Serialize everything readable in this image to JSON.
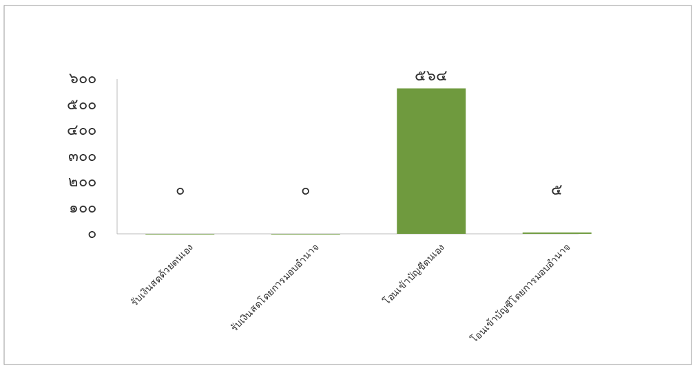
{
  "chart_data": {
    "type": "bar",
    "categories": [
      "รับเงินสดด้วยตนเอง",
      "รับเงินสดโดยการมอบอำนาจ",
      "โอนเข้าบัญชีตนเอง",
      "โอนเข้าบัญชีโดยการมอบอำนาจ"
    ],
    "values": [
      0,
      0,
      564,
      5
    ],
    "value_labels": [
      "๐",
      "๐",
      "๕๖๔",
      "๕"
    ],
    "color": "#6f9a3e",
    "ylim": [
      0,
      600
    ],
    "yticks": [
      {
        "value": 0,
        "label": "๐"
      },
      {
        "value": 100,
        "label": "๑๐๐"
      },
      {
        "value": 200,
        "label": "๒๐๐"
      },
      {
        "value": 300,
        "label": "๓๐๐"
      },
      {
        "value": 400,
        "label": "๔๐๐"
      },
      {
        "value": 500,
        "label": "๕๐๐"
      },
      {
        "value": 600,
        "label": "๖๐๐"
      }
    ],
    "grid": false
  }
}
